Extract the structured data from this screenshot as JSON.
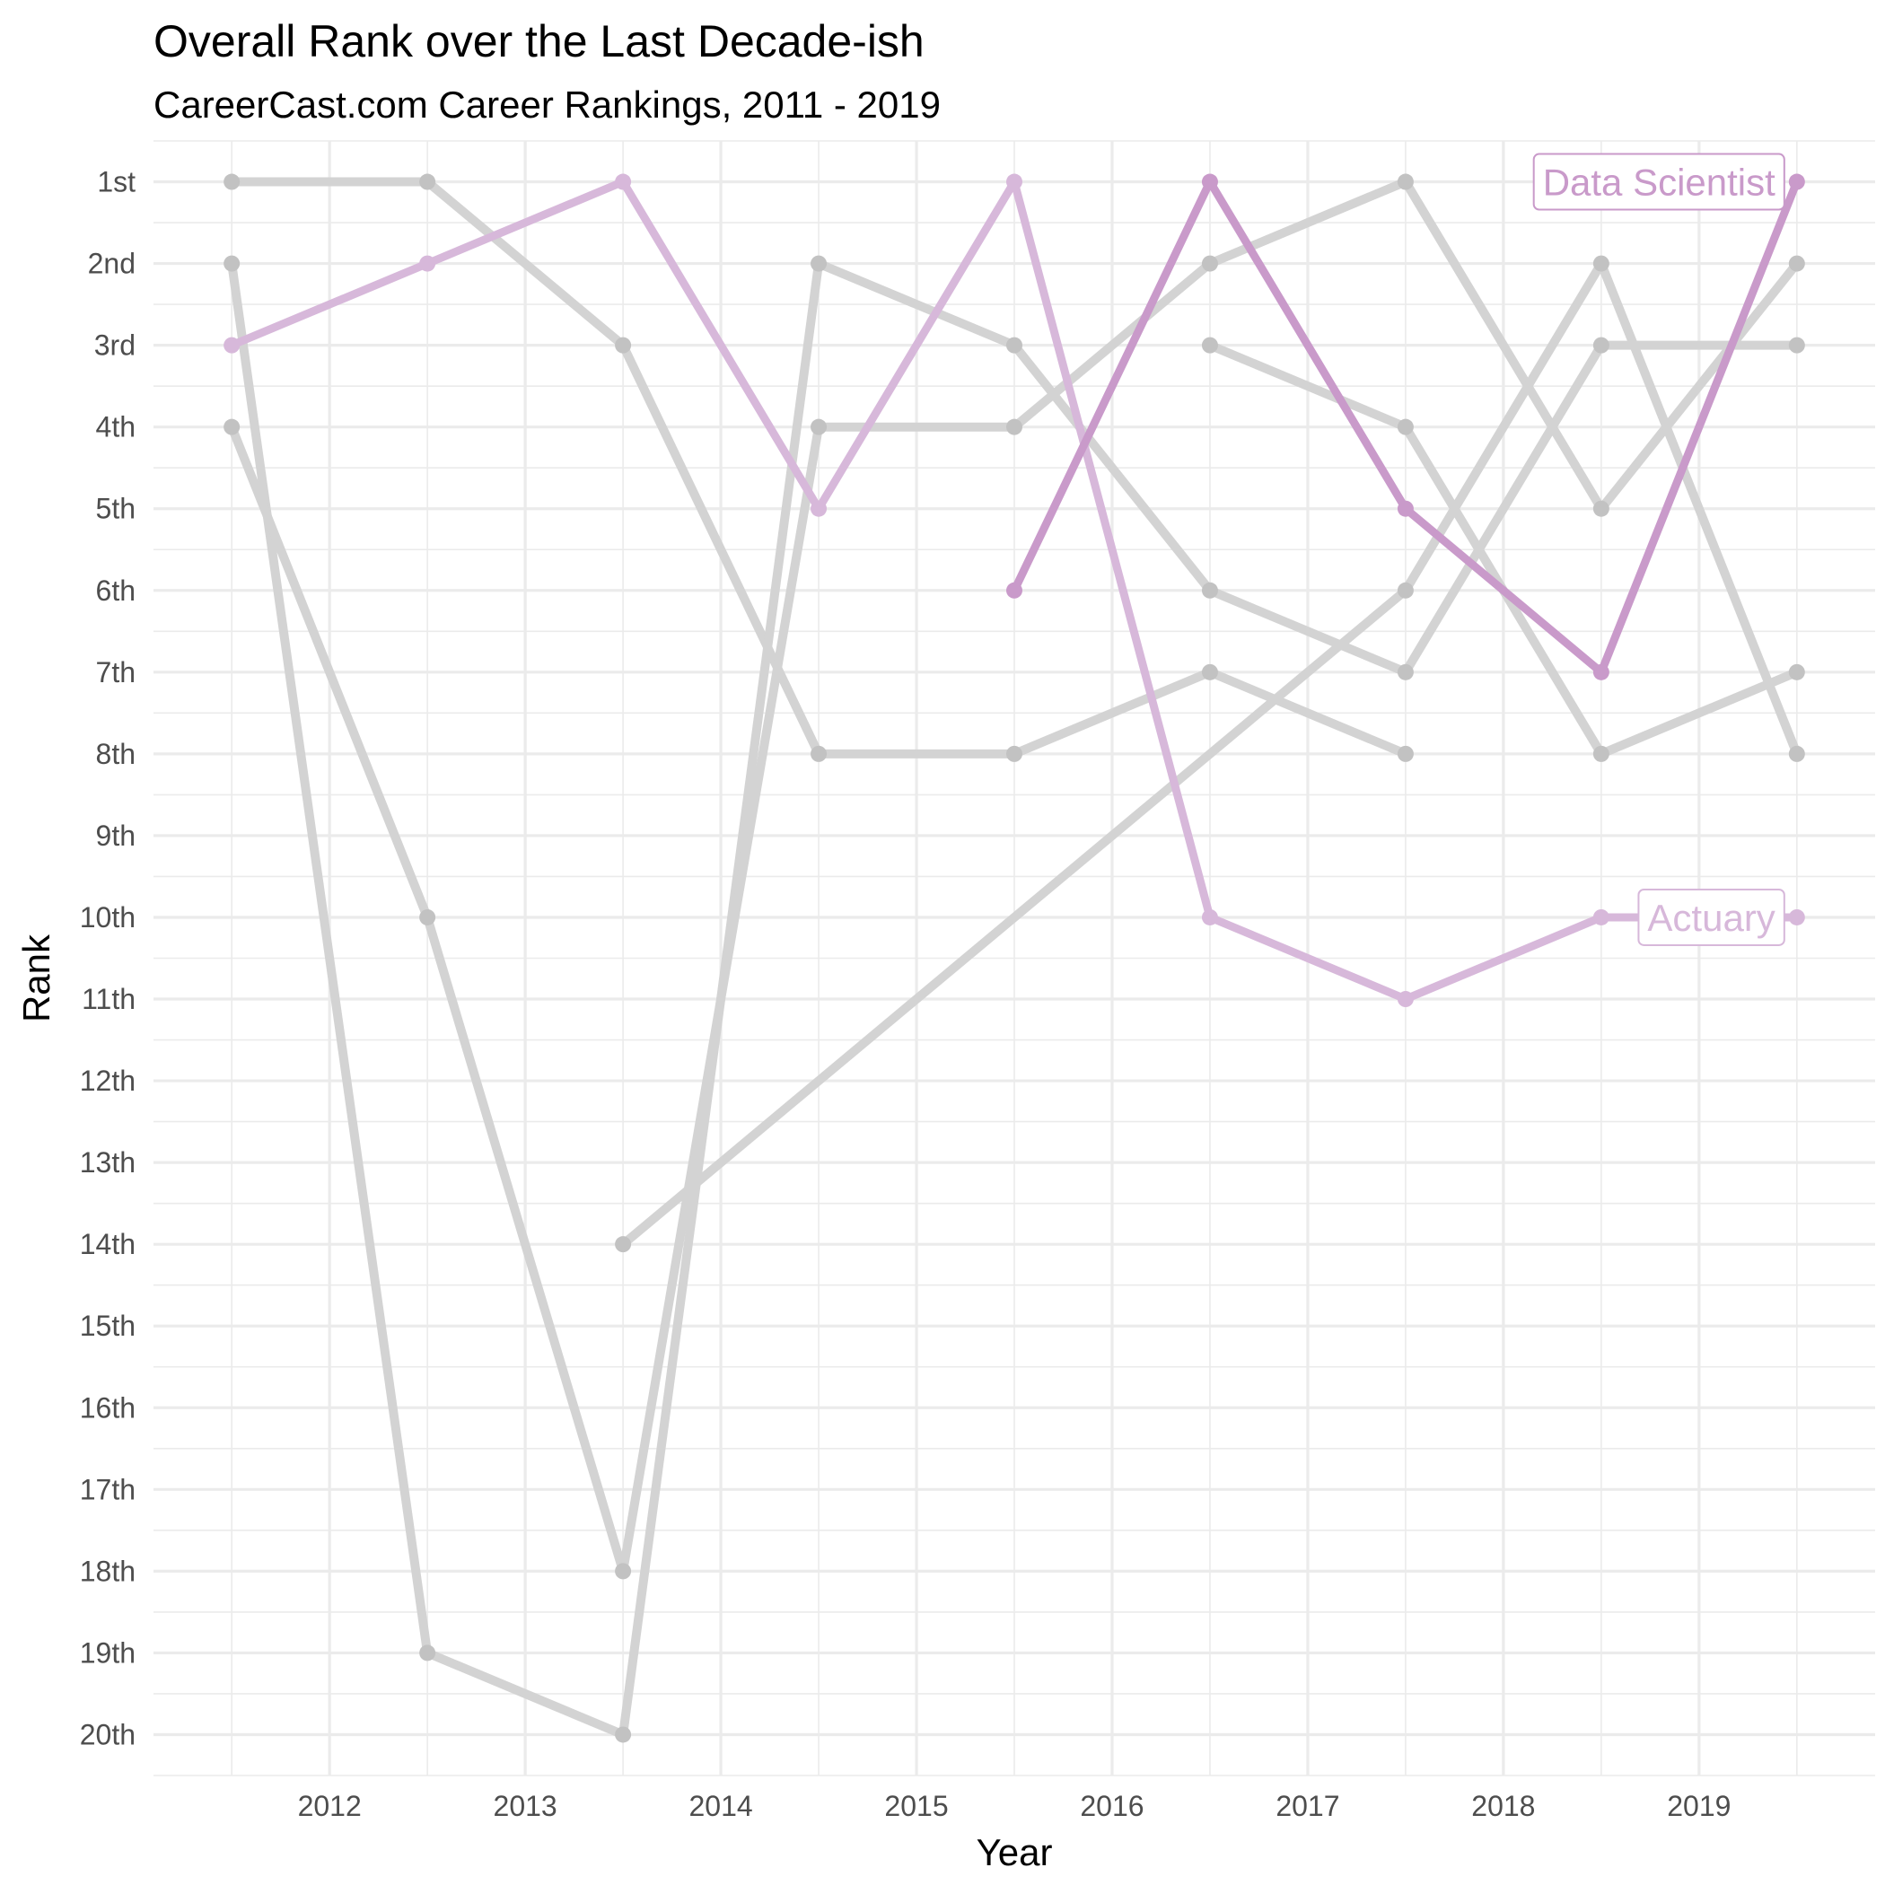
{
  "chart_data": {
    "type": "line",
    "title": "Overall Rank over the Last Decade-ish",
    "subtitle": "CareerCast.com Career Rankings, 2011 - 2019",
    "xlabel": "Year",
    "ylabel": "Rank",
    "x_ticks": [
      "2012",
      "2013",
      "2014",
      "2015",
      "2016",
      "2017",
      "2018",
      "2019"
    ],
    "y_ticks": [
      "1st",
      "2nd",
      "3rd",
      "4th",
      "5th",
      "6th",
      "7th",
      "8th",
      "9th",
      "10th",
      "11th",
      "12th",
      "13th",
      "14th",
      "15th",
      "16th",
      "17th",
      "18th",
      "19th",
      "20th"
    ],
    "xlim": [
      2011.1,
      2019.9
    ],
    "ylim": [
      20.5,
      0.5
    ],
    "y_reversed": true,
    "grid": true,
    "colors": {
      "highlight": "#c99aca",
      "highlight_light": "#d7b8da",
      "other": "#d3d3d3",
      "grid": "#ebebeb"
    },
    "series": [
      {
        "name": "Data Scientist",
        "label": "Data Scientist",
        "color": "#c99aca",
        "points": [
          [
            2015.5,
            6
          ],
          [
            2016.5,
            1
          ],
          [
            2017.5,
            5
          ],
          [
            2018.5,
            7
          ],
          [
            2019.5,
            1
          ]
        ]
      },
      {
        "name": "Actuary",
        "label": "Actuary",
        "color": "#d7b8da",
        "points": [
          [
            2011.5,
            3
          ],
          [
            2012.5,
            2
          ],
          [
            2013.5,
            1
          ],
          [
            2014.5,
            5
          ],
          [
            2015.5,
            1
          ],
          [
            2016.5,
            10
          ],
          [
            2017.5,
            11
          ],
          [
            2018.5,
            10
          ],
          [
            2019.5,
            10
          ]
        ]
      },
      {
        "color": "#d3d3d3",
        "points": [
          [
            2011.5,
            1
          ],
          [
            2012.5,
            1
          ],
          [
            2013.5,
            3
          ],
          [
            2014.5,
            8
          ],
          [
            2015.5,
            8
          ],
          [
            2016.5,
            7
          ],
          [
            2017.5,
            8
          ]
        ]
      },
      {
        "color": "#d3d3d3",
        "points": [
          [
            2011.5,
            2
          ],
          [
            2012.5,
            19
          ],
          [
            2013.5,
            20
          ],
          [
            2014.5,
            2
          ],
          [
            2015.5,
            3
          ],
          [
            2016.5,
            6
          ],
          [
            2017.5,
            7
          ],
          [
            2018.5,
            3
          ],
          [
            2019.5,
            3
          ]
        ]
      },
      {
        "color": "#d3d3d3",
        "points": [
          [
            2011.5,
            4
          ],
          [
            2012.5,
            10
          ],
          [
            2013.5,
            18
          ],
          [
            2014.5,
            4
          ],
          [
            2015.5,
            4
          ],
          [
            2016.5,
            2
          ],
          [
            2017.5,
            1
          ],
          [
            2018.5,
            5
          ],
          [
            2019.5,
            2
          ]
        ]
      },
      {
        "color": "#d3d3d3",
        "points": [
          [
            2013.5,
            14
          ],
          [
            2017.5,
            6
          ],
          [
            2018.5,
            2
          ],
          [
            2019.5,
            8
          ]
        ]
      },
      {
        "color": "#d3d3d3",
        "points": [
          [
            2016.5,
            3
          ],
          [
            2017.5,
            4
          ],
          [
            2018.5,
            8
          ],
          [
            2019.5,
            7
          ]
        ]
      }
    ]
  }
}
